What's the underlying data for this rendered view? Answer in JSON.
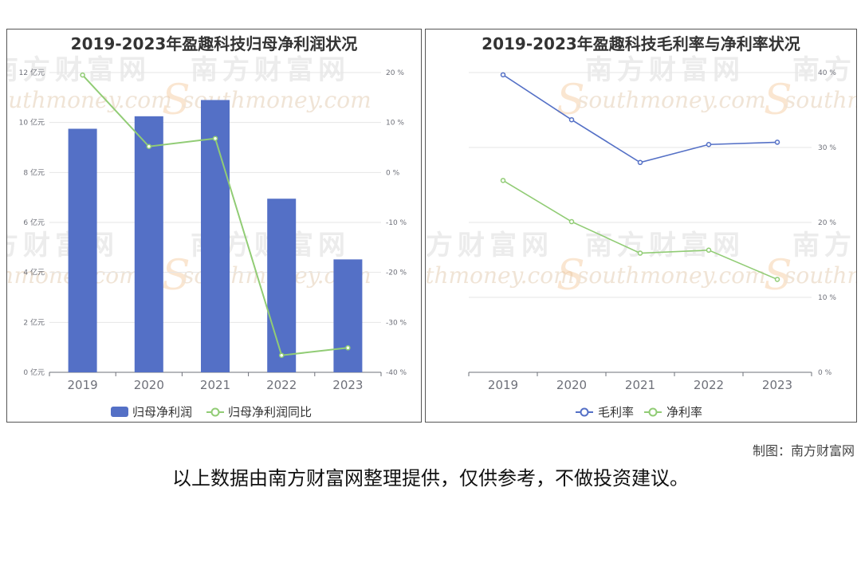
{
  "credit": "制图：南方财富网",
  "disclaimer": "以上数据由南方财富网整理提供，仅供参考，不做投资建议。",
  "watermark": {
    "cn": "南方财富网",
    "en": "southmoney.com",
    "en_cap": "S"
  },
  "colors": {
    "bar": "#5470c6",
    "green": "#91cc75",
    "blue": "#5470c6",
    "axis": "#6e7079",
    "grid": "#e6e6e6",
    "watermark": "#f5c89a"
  },
  "chart_data": [
    {
      "type": "bar",
      "title": "2019-2023年盈趣科技归母净利润状况",
      "categories": [
        "2019",
        "2020",
        "2021",
        "2022",
        "2023"
      ],
      "series": [
        {
          "name": "归母净利润",
          "type": "bar",
          "axis": "left",
          "values": [
            9.75,
            10.25,
            10.9,
            6.95,
            4.52
          ]
        },
        {
          "name": "归母净利润同比",
          "type": "line",
          "axis": "right",
          "values": [
            19.5,
            5.2,
            6.8,
            -36.6,
            -35.1
          ]
        }
      ],
      "y_left": {
        "min": 0,
        "max": 12,
        "step": 2,
        "tick_labels": [
          "0 亿元",
          "2 亿元",
          "4 亿元",
          "6 亿元",
          "8 亿元",
          "10 亿元",
          "12 亿元"
        ]
      },
      "y_right": {
        "min": -40,
        "max": 20,
        "step": 10,
        "tick_labels": [
          "-40 %",
          "-30 %",
          "-20 %",
          "-10 %",
          "0 %",
          "10 %",
          "20 %"
        ]
      },
      "grid": true,
      "legend": "bottom-center"
    },
    {
      "type": "line",
      "title": "2019-2023年盈趣科技毛利率与净利率状况",
      "categories": [
        "2019",
        "2020",
        "2021",
        "2022",
        "2023"
      ],
      "series": [
        {
          "name": "毛利率",
          "values": [
            39.7,
            33.7,
            28.0,
            30.4,
            30.7
          ]
        },
        {
          "name": "净利率",
          "values": [
            25.6,
            20.1,
            15.9,
            16.3,
            12.4
          ]
        }
      ],
      "y_right": {
        "min": 0,
        "max": 40,
        "step": 10,
        "tick_labels": [
          "0 %",
          "10 %",
          "20 %",
          "30 %",
          "40 %"
        ]
      },
      "grid": true,
      "legend": "bottom-center"
    }
  ]
}
